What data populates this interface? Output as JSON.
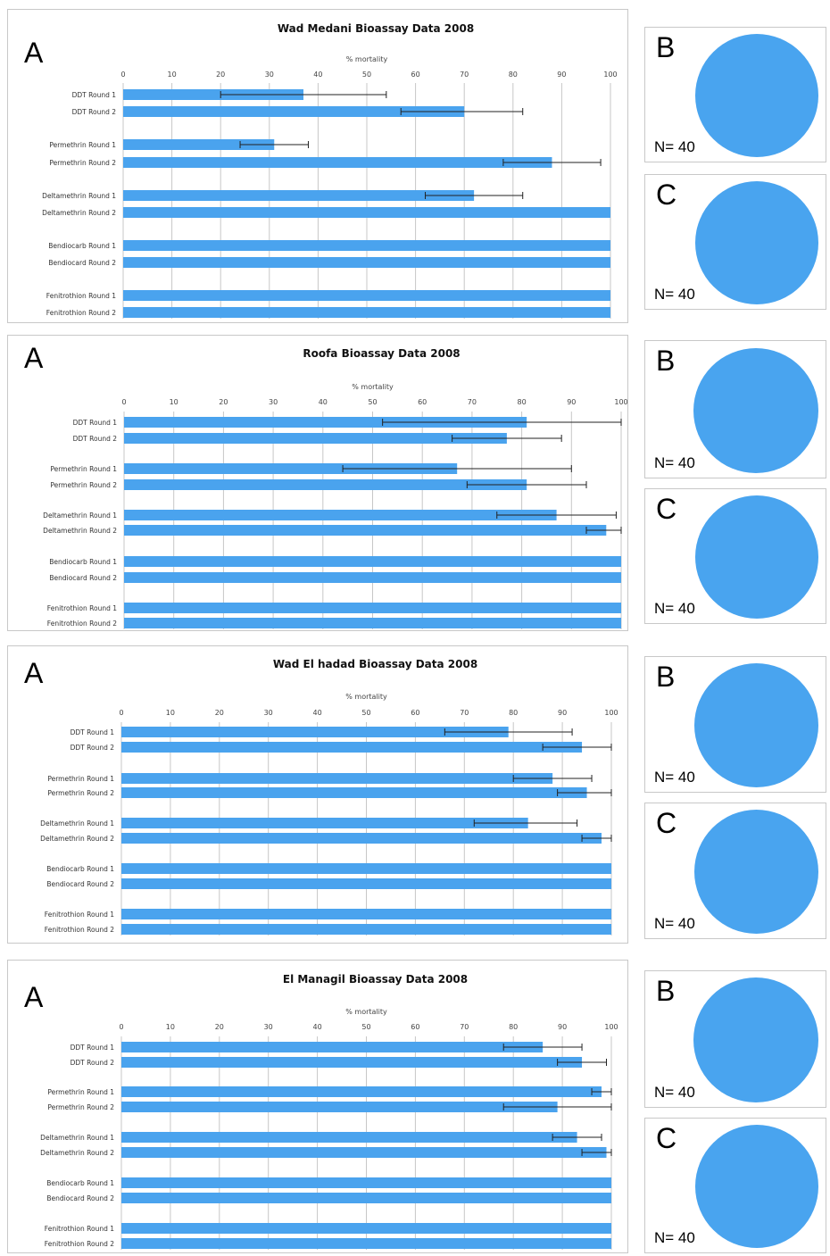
{
  "colors": {
    "bar": "#4aa3ee",
    "pie": "#49a4ef",
    "grid": "#c7c7c7",
    "error_bar": "#222222"
  },
  "panel_letters": {
    "a": "A",
    "b": "B",
    "c": "C"
  },
  "n_label": "N= 40",
  "chart_data": [
    {
      "type": "bar",
      "title": "Wad Medani Bioassay Data 2008",
      "xlabel": "% mortality",
      "xlim": [
        0,
        100
      ],
      "ticks": [
        0,
        10,
        20,
        30,
        40,
        50,
        60,
        70,
        80,
        90,
        100
      ],
      "categories": [
        "DDT Round 1",
        "DDT Round 2",
        "Permethrin Round 1",
        "Permethrin Round 2",
        "Deltamethrin Round 1",
        "Deltamethrin Round 2",
        "Bendiocarb Round 1",
        "Bendiocard Round 2",
        "Fenitrothion Round 1",
        "Fenitrothion Round 2"
      ],
      "values": [
        37,
        70,
        31,
        88,
        72,
        100,
        100,
        100,
        100,
        100
      ],
      "error_low": [
        20,
        57,
        24,
        78,
        62,
        null,
        null,
        null,
        null,
        null
      ],
      "error_high": [
        54,
        82,
        38,
        98,
        82,
        null,
        null,
        null,
        null,
        null
      ],
      "pies": [
        {
          "label": "B",
          "n": "N= 40"
        },
        {
          "label": "C",
          "n": "N= 40"
        }
      ]
    },
    {
      "type": "bar",
      "title": "Roofa Bioassay Data 2008",
      "xlabel": "% mortality",
      "xlim": [
        0,
        100
      ],
      "ticks": [
        0,
        10,
        20,
        30,
        40,
        50,
        60,
        70,
        80,
        90,
        100
      ],
      "categories": [
        "DDT Round 1",
        "DDT Round 2",
        "Permethrin Round 1",
        "Permethrin Round 2",
        "Deltamethrin Round 1",
        "Deltamethrin Round 2",
        "Bendiocarb Round 1",
        "Bendiocard Round 2",
        "Fenitrothion Round 1",
        "Fenitrothion Round 2"
      ],
      "values": [
        81,
        77,
        67,
        81,
        87,
        97,
        100,
        100,
        100,
        100
      ],
      "error_low": [
        52,
        66,
        44,
        69,
        75,
        93,
        null,
        null,
        null,
        null
      ],
      "error_high": [
        100,
        88,
        90,
        93,
        99,
        100,
        null,
        null,
        null,
        null
      ],
      "pies": [
        {
          "label": "B",
          "n": "N= 40"
        },
        {
          "label": "C",
          "n": "N= 40"
        }
      ]
    },
    {
      "type": "bar",
      "title": "Wad El hadad Bioassay Data 2008",
      "xlabel": "% mortality",
      "xlim": [
        0,
        100
      ],
      "ticks": [
        0,
        10,
        20,
        30,
        40,
        50,
        60,
        70,
        80,
        90,
        100
      ],
      "categories": [
        "DDT Round 1",
        "DDT Round 2",
        "Permethrin Round 1",
        "Permethrin Round 2",
        "Deltamethrin Round 1",
        "Deltamethrin Round 2",
        "Bendiocarb Round 1",
        "Bendiocard Round 2",
        "Fenitrothion Round 1",
        "Fenitrothion Round 2"
      ],
      "values": [
        79,
        94,
        88,
        95,
        83,
        98,
        100,
        100,
        100,
        100
      ],
      "error_low": [
        66,
        86,
        80,
        89,
        72,
        94,
        null,
        null,
        null,
        null
      ],
      "error_high": [
        92,
        100,
        96,
        100,
        93,
        100,
        null,
        null,
        null,
        null
      ],
      "pies": [
        {
          "label": "B",
          "n": "N= 40"
        },
        {
          "label": "C",
          "n": "N= 40"
        }
      ]
    },
    {
      "type": "bar",
      "title": "El Managil Bioassay Data 2008",
      "xlabel": "% mortality",
      "xlim": [
        0,
        100
      ],
      "ticks": [
        0,
        10,
        20,
        30,
        40,
        50,
        60,
        70,
        80,
        90,
        100
      ],
      "categories": [
        "DDT Round 1",
        "DDT Round 2",
        "Permethrin Round 1",
        "Permethrin Round 2",
        "Deltamethrin Round 1",
        "Deltamethrin Round 2",
        "Bendiocarb Round 1",
        "Bendiocard Round 2",
        "Fenitrothion Round 1",
        "Fenitrothion Round 2"
      ],
      "values": [
        86,
        94,
        98,
        89,
        93,
        99,
        100,
        100,
        100,
        100
      ],
      "error_low": [
        78,
        89,
        96,
        78,
        88,
        94,
        null,
        null,
        null,
        null
      ],
      "error_high": [
        94,
        99,
        100,
        100,
        98,
        100,
        null,
        null,
        null,
        null
      ],
      "pies": [
        {
          "label": "B",
          "n": "N= 40"
        },
        {
          "label": "C",
          "n": "N= 40"
        }
      ]
    }
  ]
}
